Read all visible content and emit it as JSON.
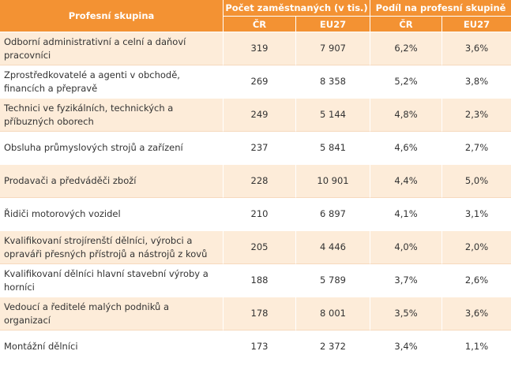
{
  "header": {
    "group": "Profesní skupina",
    "employed": "Počet zaměstnaných (v tis.)",
    "share": "Podíl na profesní skupině",
    "cz": "ČR",
    "eu": "EU27",
    "cz2": "ČR",
    "eu2": "EU27"
  },
  "rows": [
    {
      "label": "Odborní administrativní a celní a daňoví pracovníci",
      "cz": "319",
      "eu": "7 907",
      "cz_share": "6,2%",
      "eu_share": "3,6%"
    },
    {
      "label": "Zprostředkovatelé a agenti v obchodě, financích a přepravě",
      "cz": "269",
      "eu": "8 358",
      "cz_share": "5,2%",
      "eu_share": "3,8%"
    },
    {
      "label": "Technici ve fyzikálních, technických a příbuzných oborech",
      "cz": "249",
      "eu": "5 144",
      "cz_share": "4,8%",
      "eu_share": "2,3%"
    },
    {
      "label": "Obsluha průmyslových strojů a zařízení",
      "cz": "237",
      "eu": "5 841",
      "cz_share": "4,6%",
      "eu_share": "2,7%"
    },
    {
      "label": "Prodavači a předváděči zboží",
      "cz": "228",
      "eu": "10 901",
      "cz_share": "4,4%",
      "eu_share": "5,0%"
    },
    {
      "label": "Řidiči motorových vozidel",
      "cz": "210",
      "eu": "6 897",
      "cz_share": "4,1%",
      "eu_share": "3,1%"
    },
    {
      "label": "Kvalifikovaní strojírenští dělníci, výrobci a opraváři přesných přístrojů a nástrojů z kovů",
      "cz": "205",
      "eu": "4 446",
      "cz_share": "4,0%",
      "eu_share": "2,0%"
    },
    {
      "label": "Kvalifikovaní dělníci hlavní stavební výroby a horníci",
      "cz": "188",
      "eu": "5 789",
      "cz_share": "3,7%",
      "eu_share": "2,6%"
    },
    {
      "label": "Vedoucí a ředitelé malých podniků a organizací",
      "cz": "178",
      "eu": "8 001",
      "cz_share": "3,5%",
      "eu_share": "3,6%"
    },
    {
      "label": "Montážní dělníci",
      "cz": "173",
      "eu": "2 372",
      "cz_share": "3,4%",
      "eu_share": "1,1%"
    }
  ]
}
